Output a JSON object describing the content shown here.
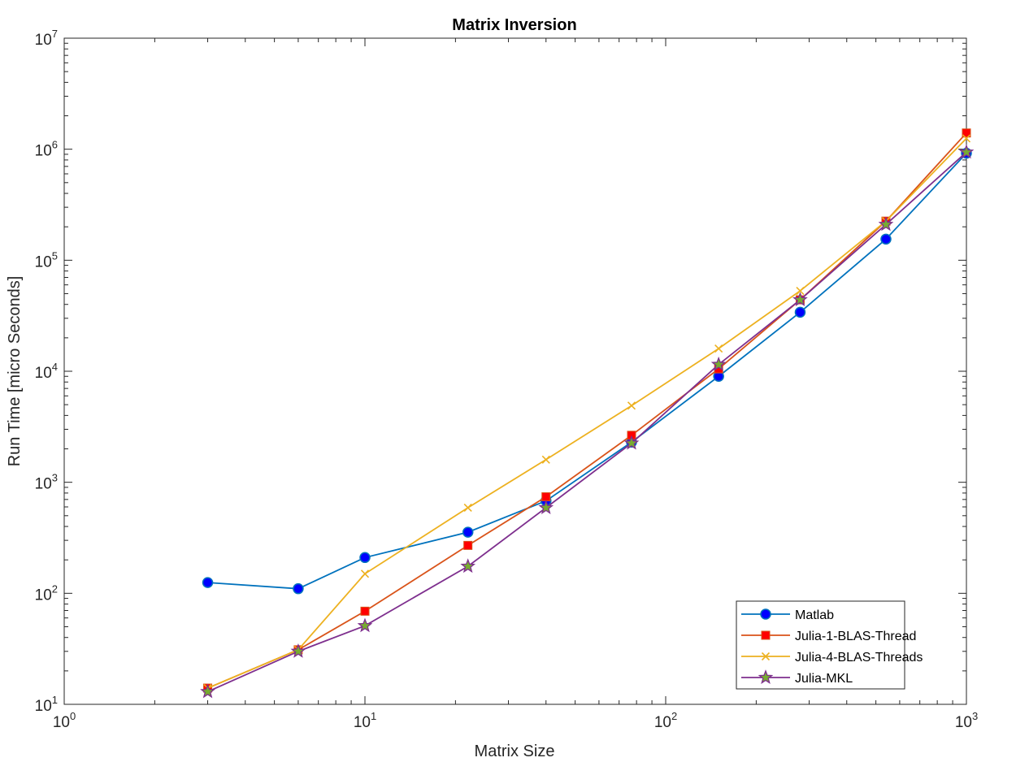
{
  "chart_data": {
    "type": "line",
    "title": "Matrix Inversion",
    "xlabel": "Matrix Size",
    "ylabel": "Run Time  [micro Seconds]",
    "xscale": "log",
    "yscale": "log",
    "xlim": [
      1,
      1000
    ],
    "ylim": [
      10,
      10000000
    ],
    "grid": false,
    "legend_position": "bottom-right",
    "x_ticks": [
      {
        "base": "10",
        "exp": "0",
        "value": 1
      },
      {
        "base": "10",
        "exp": "1",
        "value": 10
      },
      {
        "base": "10",
        "exp": "2",
        "value": 100
      },
      {
        "base": "10",
        "exp": "3",
        "value": 1000
      }
    ],
    "y_ticks": [
      {
        "base": "10",
        "exp": "1",
        "value": 10
      },
      {
        "base": "10",
        "exp": "2",
        "value": 100
      },
      {
        "base": "10",
        "exp": "3",
        "value": 1000
      },
      {
        "base": "10",
        "exp": "4",
        "value": 10000
      },
      {
        "base": "10",
        "exp": "5",
        "value": 100000
      },
      {
        "base": "10",
        "exp": "6",
        "value": 1000000
      },
      {
        "base": "10",
        "exp": "7",
        "value": 10000000
      }
    ],
    "x": [
      3,
      6,
      10,
      22,
      40,
      77,
      150,
      280,
      540,
      1000
    ],
    "series": [
      {
        "name": "Matlab",
        "color": "#0072BD",
        "marker": "circle",
        "marker_fill": "#0000FF",
        "values": [
          125,
          110,
          210,
          355,
          680,
          2300,
          9000,
          34000,
          155000,
          920000
        ]
      },
      {
        "name": "Julia-1-BLAS-Thread",
        "color": "#D95319",
        "marker": "square",
        "marker_fill": "#FF0000",
        "values": [
          14,
          31,
          69,
          270,
          740,
          2650,
          10500,
          44000,
          225000,
          1400000
        ]
      },
      {
        "name": "Julia-4-BLAS-Threads",
        "color": "#EDB120",
        "marker": "x",
        "marker_fill": "none",
        "values": [
          14,
          31,
          150,
          590,
          1600,
          4900,
          16000,
          53000,
          225000,
          1250000
        ]
      },
      {
        "name": "Julia-MKL",
        "color": "#7E2F8E",
        "marker": "star",
        "marker_fill": "#77AC30",
        "values": [
          13,
          30,
          51,
          175,
          590,
          2250,
          11500,
          44000,
          210000,
          940000
        ]
      }
    ]
  }
}
